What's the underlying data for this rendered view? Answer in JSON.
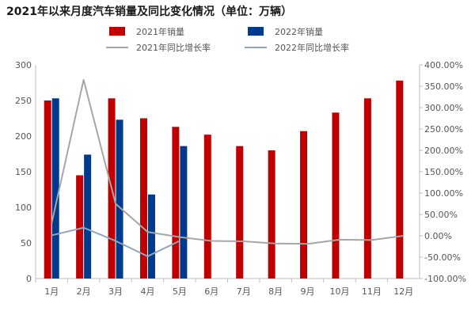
{
  "chart_data": {
    "type": "bar",
    "title": "2021年以来月度汽车销量及同比变化情况（单位：万辆）",
    "categories": [
      "1月",
      "2月",
      "3月",
      "4月",
      "5月",
      "6月",
      "7月",
      "8月",
      "9月",
      "10月",
      "11月",
      "12月"
    ],
    "series": [
      {
        "name": "2021年销量",
        "type": "bar",
        "axis": "left",
        "color": "#c00000",
        "values": [
          250,
          145,
          253,
          225,
          213,
          202,
          186,
          180,
          207,
          233,
          253,
          278
        ]
      },
      {
        "name": "2022年销量",
        "type": "bar",
        "axis": "left",
        "color": "#003a8c",
        "values": [
          253,
          174,
          223,
          118,
          186,
          null,
          null,
          null,
          null,
          null,
          null,
          null
        ]
      },
      {
        "name": "2021年同比增长率",
        "type": "line",
        "axis": "right",
        "color": "#a6a6a6",
        "values": [
          29,
          365,
          75,
          9,
          -3,
          -12,
          -13,
          -18,
          -19,
          -9,
          -10,
          0
        ]
      },
      {
        "name": "2022年同比增长率",
        "type": "line",
        "axis": "right",
        "color": "#8fa6c1",
        "values": [
          1,
          19,
          -12,
          -48,
          -12,
          null,
          null,
          null,
          null,
          null,
          null,
          null
        ]
      }
    ],
    "ylim": [
      0,
      300
    ],
    "yticks": [
      0,
      50,
      100,
      150,
      200,
      250,
      300
    ],
    "y2lim": [
      -100,
      400
    ],
    "y2ticks": [
      "-100.00%",
      "-50.00%",
      "0.00%",
      "50.00%",
      "100.00%",
      "150.00%",
      "200.00%",
      "250.00%",
      "300.00%",
      "350.00%",
      "400.00%"
    ],
    "legend": "top-center",
    "grid": false
  }
}
